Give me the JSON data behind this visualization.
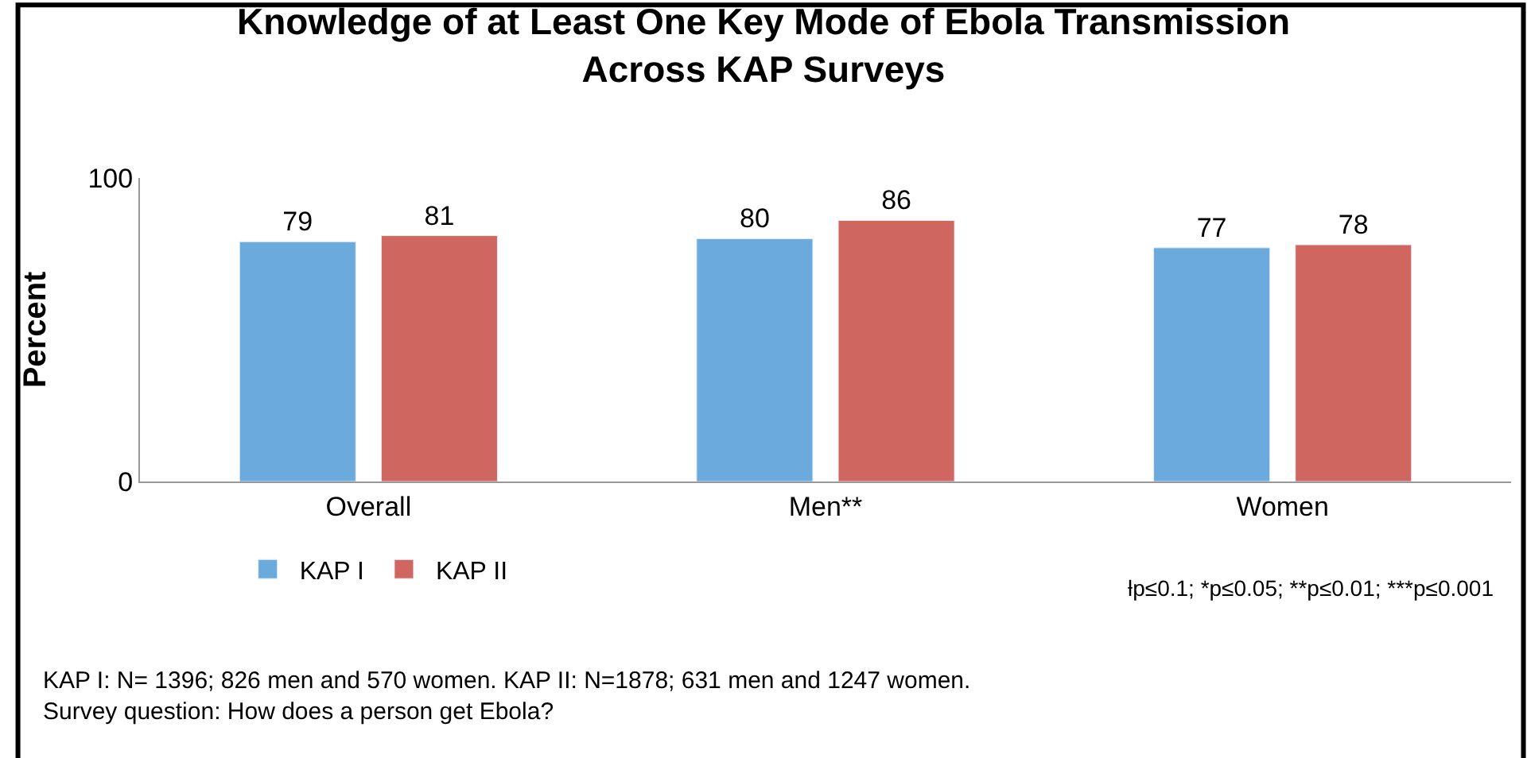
{
  "chart_data": {
    "type": "bar",
    "title": "Knowledge of at Least One Key Mode of Ebola Transmission\nAcross KAP Surveys",
    "ylabel": "Percent",
    "categories": [
      "Overall",
      "Men**",
      "Women"
    ],
    "series": [
      {
        "name": "KAP I",
        "color": "#6aaadc",
        "values": [
          79,
          80,
          77
        ]
      },
      {
        "name": "KAP II",
        "color": "#cf6760",
        "values": [
          81,
          86,
          78
        ]
      }
    ],
    "ylim": [
      0,
      100
    ],
    "yticks": [
      0,
      100
    ],
    "data_labels": true,
    "legend": "bottom left",
    "annotations": [
      "ƚp≤0.1; *p≤0.05; **p≤0.01; ***p≤0.001",
      "KAP I: N= 1396; 826 men and 570 women. KAP II: N=1878; 631 men and 1247 women.\nSurvey question: How does a person get Ebola?"
    ]
  }
}
